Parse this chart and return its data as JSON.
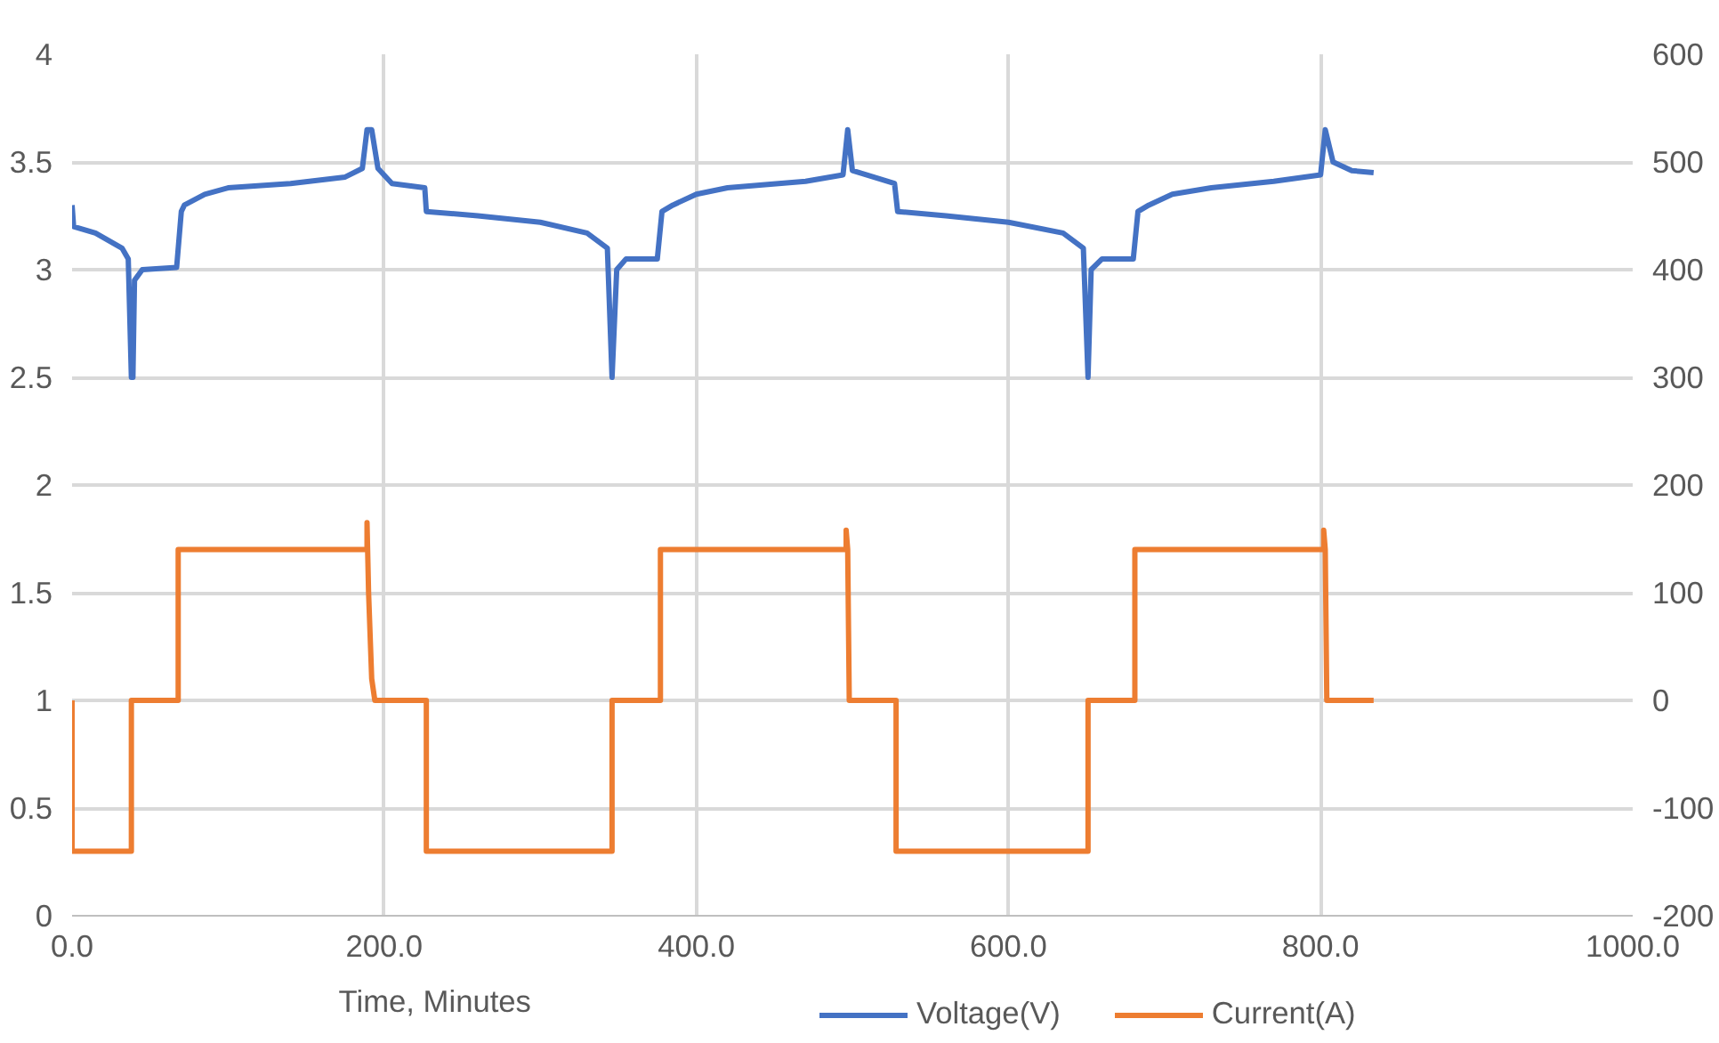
{
  "chart_data": {
    "type": "line",
    "xlabel": "Time, Minutes",
    "xlim": [
      0,
      1000
    ],
    "xticks": [
      {
        "value": 0,
        "label": "0.0"
      },
      {
        "value": 200,
        "label": "200.0"
      },
      {
        "value": 400,
        "label": "400.0"
      },
      {
        "value": 600,
        "label": "600.0"
      },
      {
        "value": 800,
        "label": "800.0"
      },
      {
        "value": 1000,
        "label": "1000.0"
      }
    ],
    "ylim": [
      0,
      4
    ],
    "yticks": [
      0,
      0.5,
      1,
      1.5,
      2,
      2.5,
      3,
      3.5,
      4
    ],
    "y2lim": [
      -200,
      600
    ],
    "y2ticks": [
      -200,
      -100,
      0,
      100,
      200,
      300,
      400,
      500,
      600
    ],
    "grid": true,
    "legend": "bottom",
    "line_style": "solid",
    "marker": "none",
    "series": [
      {
        "name": "Voltage(V)",
        "color": "#4472c4",
        "x": [
          0,
          1,
          15,
          32,
          36,
          38,
          39,
          40,
          45,
          67,
          70,
          72,
          85,
          100,
          140,
          175,
          186,
          189,
          192,
          196,
          205,
          226,
          227,
          260,
          300,
          330,
          343,
          346,
          349,
          355,
          375,
          378,
          385,
          400,
          420,
          470,
          494,
          497,
          500,
          527,
          529,
          560,
          600,
          635,
          648,
          651,
          653,
          660,
          680,
          683,
          690,
          705,
          730,
          770,
          800,
          803,
          808,
          820,
          834
        ],
        "values": [
          3.3,
          3.2,
          3.17,
          3.1,
          3.05,
          2.5,
          2.5,
          2.95,
          3.0,
          3.01,
          3.27,
          3.3,
          3.35,
          3.38,
          3.4,
          3.43,
          3.47,
          3.65,
          3.65,
          3.47,
          3.4,
          3.38,
          3.27,
          3.25,
          3.22,
          3.17,
          3.1,
          2.5,
          3.0,
          3.05,
          3.05,
          3.27,
          3.3,
          3.35,
          3.38,
          3.41,
          3.44,
          3.65,
          3.46,
          3.4,
          3.27,
          3.25,
          3.22,
          3.17,
          3.1,
          2.5,
          3.0,
          3.05,
          3.05,
          3.27,
          3.3,
          3.35,
          3.38,
          3.41,
          3.44,
          3.65,
          3.5,
          3.46,
          3.45
        ]
      },
      {
        "name": "Current(A)",
        "color": "#ed7d31",
        "axis": "y2",
        "x": [
          0,
          0,
          38,
          38,
          68,
          68,
          189,
          189,
          190,
          192,
          194,
          227,
          227,
          346,
          346,
          377,
          377,
          496,
          496,
          497,
          498,
          528,
          528,
          651,
          651,
          681,
          681,
          802,
          802,
          803,
          804,
          834
        ],
        "values": [
          0,
          -140,
          -140,
          0,
          0,
          140,
          140,
          165,
          100,
          20,
          0,
          0,
          -140,
          -140,
          0,
          0,
          140,
          140,
          158,
          140,
          0,
          0,
          -140,
          -140,
          0,
          0,
          140,
          140,
          158,
          140,
          0,
          0
        ]
      }
    ]
  }
}
